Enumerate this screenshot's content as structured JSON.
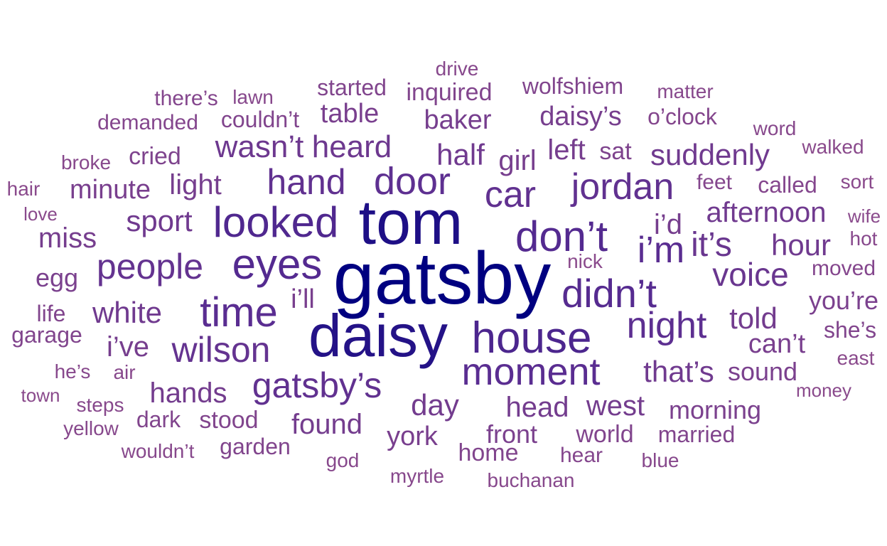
{
  "words": [
    {
      "text": "gatsby",
      "level": 1.0
    },
    {
      "text": "tom",
      "level": 0.85
    },
    {
      "text": "daisy",
      "level": 0.82
    },
    {
      "text": "house",
      "level": 0.62
    },
    {
      "text": "looked",
      "level": 0.6
    },
    {
      "text": "eyes",
      "level": 0.58
    },
    {
      "text": "don’t",
      "level": 0.58
    },
    {
      "text": "didn’t",
      "level": 0.57
    },
    {
      "text": "moment",
      "level": 0.55
    },
    {
      "text": "time",
      "level": 0.55
    },
    {
      "text": "i’m",
      "level": 0.55
    },
    {
      "text": "night",
      "level": 0.53
    },
    {
      "text": "door",
      "level": 0.52
    },
    {
      "text": "gatsby’s",
      "level": 0.5
    },
    {
      "text": "jordan",
      "level": 0.5
    },
    {
      "text": "car",
      "level": 0.5
    },
    {
      "text": "hand",
      "level": 0.5
    },
    {
      "text": "wilson",
      "level": 0.48
    },
    {
      "text": "people",
      "level": 0.48
    },
    {
      "text": "it’s",
      "level": 0.45
    },
    {
      "text": "voice",
      "level": 0.45
    },
    {
      "text": "wasn’t",
      "level": 0.42
    },
    {
      "text": "heard",
      "level": 0.42
    },
    {
      "text": "suddenly",
      "level": 0.4
    },
    {
      "text": "afternoon",
      "level": 0.4
    },
    {
      "text": "half",
      "level": 0.4
    },
    {
      "text": "hour",
      "level": 0.4
    },
    {
      "text": "white",
      "level": 0.4
    },
    {
      "text": "that’s",
      "level": 0.4
    },
    {
      "text": "sport",
      "level": 0.4
    },
    {
      "text": "hands",
      "level": 0.38
    },
    {
      "text": "told",
      "level": 0.38
    },
    {
      "text": "head",
      "level": 0.38
    },
    {
      "text": "day",
      "level": 0.38
    },
    {
      "text": "west",
      "level": 0.37
    },
    {
      "text": "found",
      "level": 0.37
    },
    {
      "text": "baker",
      "level": 0.36
    },
    {
      "text": "left",
      "level": 0.36
    },
    {
      "text": "miss",
      "level": 0.36
    },
    {
      "text": "light",
      "level": 0.36
    },
    {
      "text": "i’ve",
      "level": 0.36
    },
    {
      "text": "i’d",
      "level": 0.36
    },
    {
      "text": "girl",
      "level": 0.35
    },
    {
      "text": "daisy’s",
      "level": 0.35
    },
    {
      "text": "table",
      "level": 0.34
    },
    {
      "text": "minute",
      "level": 0.34
    },
    {
      "text": "can’t",
      "level": 0.34
    },
    {
      "text": "york",
      "level": 0.34
    },
    {
      "text": "i’ll",
      "level": 0.34
    },
    {
      "text": "you’re",
      "level": 0.32
    },
    {
      "text": "front",
      "level": 0.32
    },
    {
      "text": "morning",
      "level": 0.32
    },
    {
      "text": "sound",
      "level": 0.32
    },
    {
      "text": "egg",
      "level": 0.32
    },
    {
      "text": "sat",
      "level": 0.3
    },
    {
      "text": "cried",
      "level": 0.3
    },
    {
      "text": "stood",
      "level": 0.28
    },
    {
      "text": "world",
      "level": 0.28
    },
    {
      "text": "married",
      "level": 0.28
    },
    {
      "text": "home",
      "level": 0.28
    },
    {
      "text": "garden",
      "level": 0.28
    },
    {
      "text": "started",
      "level": 0.28
    },
    {
      "text": "inquired",
      "level": 0.28
    },
    {
      "text": "wolfshiem",
      "level": 0.28
    },
    {
      "text": "couldn’t",
      "level": 0.28
    },
    {
      "text": "life",
      "level": 0.28
    },
    {
      "text": "garage",
      "level": 0.28
    },
    {
      "text": "she’s",
      "level": 0.28
    },
    {
      "text": "dark",
      "level": 0.28
    },
    {
      "text": "moved",
      "level": 0.26
    },
    {
      "text": "hear",
      "level": 0.26
    },
    {
      "text": "called",
      "level": 0.26
    },
    {
      "text": "feet",
      "level": 0.26
    },
    {
      "text": "demanded",
      "level": 0.26
    },
    {
      "text": "there’s",
      "level": 0.26
    },
    {
      "text": "o’clock",
      "level": 0.26
    },
    {
      "text": "matter",
      "level": 0.24
    },
    {
      "text": "hot",
      "level": 0.24
    },
    {
      "text": "he’s",
      "level": 0.24
    },
    {
      "text": "yellow",
      "level": 0.24
    },
    {
      "text": "myrtle",
      "level": 0.24
    },
    {
      "text": "steps",
      "level": 0.24
    },
    {
      "text": "air",
      "level": 0.24
    },
    {
      "text": "wouldn’t",
      "level": 0.24
    },
    {
      "text": "broke",
      "level": 0.24
    },
    {
      "text": "buchanan",
      "level": 0.24
    },
    {
      "text": "lawn",
      "level": 0.24
    },
    {
      "text": "drive",
      "level": 0.24
    },
    {
      "text": "god",
      "level": 0.24
    },
    {
      "text": "blue",
      "level": 0.24
    },
    {
      "text": "word",
      "level": 0.24
    },
    {
      "text": "walked",
      "level": 0.22
    },
    {
      "text": "hair",
      "level": 0.22
    },
    {
      "text": "love",
      "level": 0.22
    },
    {
      "text": "sort",
      "level": 0.22
    },
    {
      "text": "wife",
      "level": 0.22
    },
    {
      "text": "nick",
      "level": 0.22
    },
    {
      "text": "east",
      "level": 0.22
    },
    {
      "text": "money",
      "level": 0.22
    },
    {
      "text": "town",
      "level": 0.22
    }
  ],
  "colors": {
    "high": "#000080",
    "mid": "#5a2d91",
    "low": "#8a4a8c"
  }
}
